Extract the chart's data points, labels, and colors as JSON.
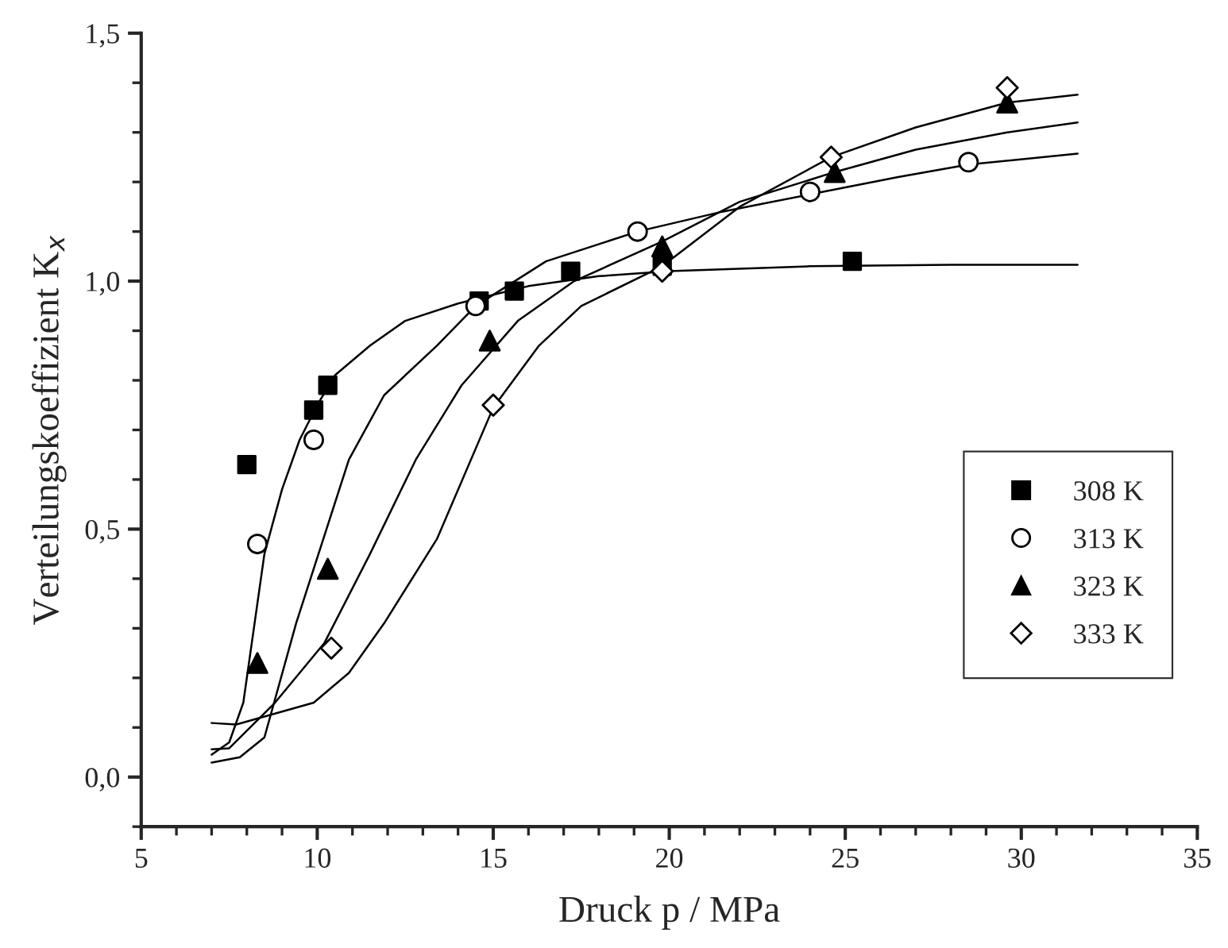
{
  "chart_data": {
    "type": "scatter",
    "xlabel": "Druck p / MPa",
    "ylabel": "Verteilungskoeffizient K$_{x}$",
    "xlim": [
      5,
      35
    ],
    "xticks": [
      5,
      10,
      15,
      20,
      25,
      30,
      35
    ],
    "ylim": [
      -0.1,
      1.5
    ],
    "yticks": [
      {
        "value": 0.0,
        "label": "0,0"
      },
      {
        "value": 0.5,
        "label": "0,5"
      },
      {
        "value": 1.0,
        "label": "1,0"
      },
      {
        "value": 1.5,
        "label": "1,5"
      }
    ],
    "grid": false,
    "legend": "right",
    "series": [
      {
        "name": "308 K",
        "color": "#000000",
        "marker": "square",
        "x": [
          8.0,
          9.9,
          10.3,
          14.6,
          15.6,
          17.2,
          19.8,
          25.2
        ],
        "values": [
          0.63,
          0.74,
          0.79,
          0.96,
          0.98,
          1.02,
          1.03,
          1.04
        ]
      },
      {
        "name": "313 K",
        "color": "#000000",
        "marker": "circle",
        "x": [
          8.3,
          9.9,
          14.5,
          19.1,
          24.0,
          28.5
        ],
        "values": [
          0.47,
          0.68,
          0.95,
          1.1,
          1.18,
          1.24
        ]
      },
      {
        "name": "323 K",
        "color": "#000000",
        "marker": "triangle",
        "x": [
          8.3,
          10.3,
          14.9,
          19.8,
          24.7,
          29.6
        ],
        "values": [
          0.23,
          0.42,
          0.88,
          1.07,
          1.22,
          1.36
        ]
      },
      {
        "name": "333 K",
        "color": "#000000",
        "marker": "diamond",
        "x": [
          10.4,
          15.0,
          19.8,
          24.6,
          29.6
        ],
        "values": [
          0.26,
          0.75,
          1.02,
          1.25,
          1.39
        ]
      },
      {
        "type": "line",
        "color": "#000000",
        "marker": "none",
        "x": [
          7.0,
          7.5,
          7.9,
          8.2,
          8.5,
          9.0,
          9.5,
          10.0,
          10.5,
          11.5,
          12.5,
          14.0,
          16.0,
          18.0,
          20.0,
          24.0,
          28.0,
          31.6
        ],
        "values": [
          0.045,
          0.07,
          0.15,
          0.3,
          0.45,
          0.58,
          0.68,
          0.75,
          0.81,
          0.87,
          0.92,
          0.955,
          0.99,
          1.01,
          1.02,
          1.03,
          1.033,
          1.033
        ]
      },
      {
        "type": "line",
        "color": "#000000",
        "marker": "none",
        "x": [
          7.0,
          7.8,
          8.5,
          9.4,
          10.9,
          11.9,
          13.4,
          14.5,
          16.5,
          19.1,
          21.5,
          24.0,
          26.5,
          28.5,
          31.6
        ],
        "values": [
          0.029,
          0.04,
          0.08,
          0.31,
          0.64,
          0.77,
          0.87,
          0.95,
          1.04,
          1.1,
          1.14,
          1.175,
          1.21,
          1.235,
          1.257
        ]
      },
      {
        "type": "line",
        "color": "#000000",
        "marker": "none",
        "x": [
          7.0,
          7.5,
          8.8,
          10.2,
          11.5,
          12.8,
          14.1,
          15.7,
          17.3,
          19.8,
          22.0,
          24.7,
          27.0,
          29.6,
          31.6
        ],
        "values": [
          0.056,
          0.058,
          0.15,
          0.27,
          0.45,
          0.64,
          0.79,
          0.92,
          1.0,
          1.08,
          1.16,
          1.22,
          1.265,
          1.3,
          1.32
        ]
      },
      {
        "type": "line",
        "color": "#000000",
        "marker": "none",
        "x": [
          7.0,
          7.7,
          9.9,
          10.9,
          11.9,
          13.4,
          15.0,
          16.3,
          17.5,
          19.8,
          22.0,
          24.6,
          27.0,
          29.6,
          31.6
        ],
        "values": [
          0.109,
          0.106,
          0.15,
          0.21,
          0.31,
          0.48,
          0.745,
          0.87,
          0.95,
          1.03,
          1.15,
          1.25,
          1.31,
          1.36,
          1.376
        ]
      }
    ]
  }
}
